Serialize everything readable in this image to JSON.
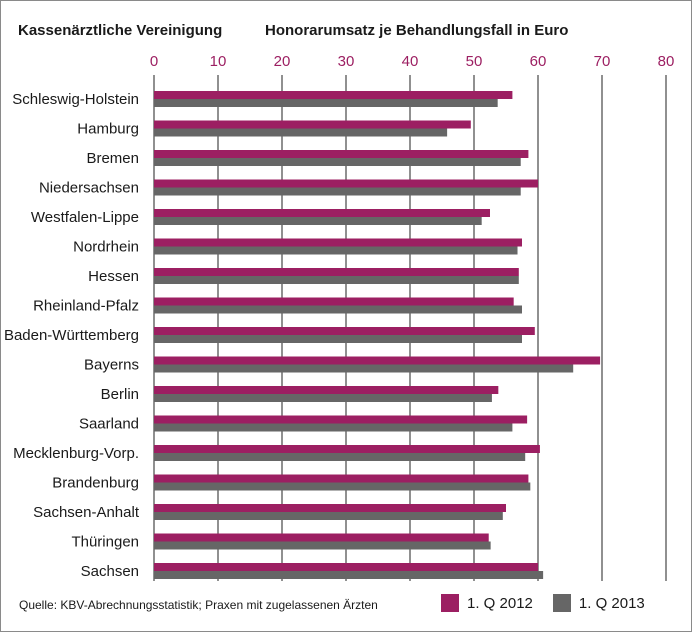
{
  "header": {
    "left_title": "Kassenärztliche Vereinigung",
    "chart_title": "Honorarumsatz je Behandlungsfall in Euro"
  },
  "source_note": "Quelle: KBV-Abrechnungsstatistik; Praxen mit zugelassenen Ärzten",
  "colors": {
    "series_2012": "#9c1f62",
    "series_2013": "#666666",
    "tick_label": "#9c1f62",
    "gridline": "#555555"
  },
  "chart_data": {
    "type": "bar",
    "orientation": "horizontal",
    "title": "Honorarumsatz je Behandlungsfall in Euro",
    "categories": [
      "Schleswig-Holstein",
      "Hamburg",
      "Bremen",
      "Niedersachsen",
      "Westfalen-Lippe",
      "Nordrhein",
      "Hessen",
      "Rheinland-Pfalz",
      "Baden-Württemberg",
      "Bayerns",
      "Berlin",
      "Saarland",
      "Mecklenburg-Vorp.",
      "Brandenburg",
      "Sachsen-Anhalt",
      "Thüringen",
      "Sachsen"
    ],
    "series": [
      {
        "name": "1. Q 2012",
        "values": [
          56.0,
          49.5,
          58.5,
          60.0,
          52.5,
          57.5,
          57.0,
          56.2,
          59.5,
          69.7,
          53.8,
          58.3,
          60.3,
          58.5,
          55.0,
          52.3,
          60.0
        ]
      },
      {
        "name": "1. Q 2013",
        "values": [
          53.7,
          45.8,
          57.3,
          57.3,
          51.2,
          56.8,
          57.0,
          57.5,
          57.5,
          65.5,
          52.8,
          56.0,
          58.0,
          58.8,
          54.5,
          52.6,
          60.8
        ]
      }
    ],
    "xlim": [
      0,
      80
    ],
    "xticks": [
      0,
      10,
      20,
      30,
      40,
      50,
      60,
      70,
      80
    ],
    "tick_position": "top",
    "grid": true,
    "legend": "bottom-right"
  }
}
